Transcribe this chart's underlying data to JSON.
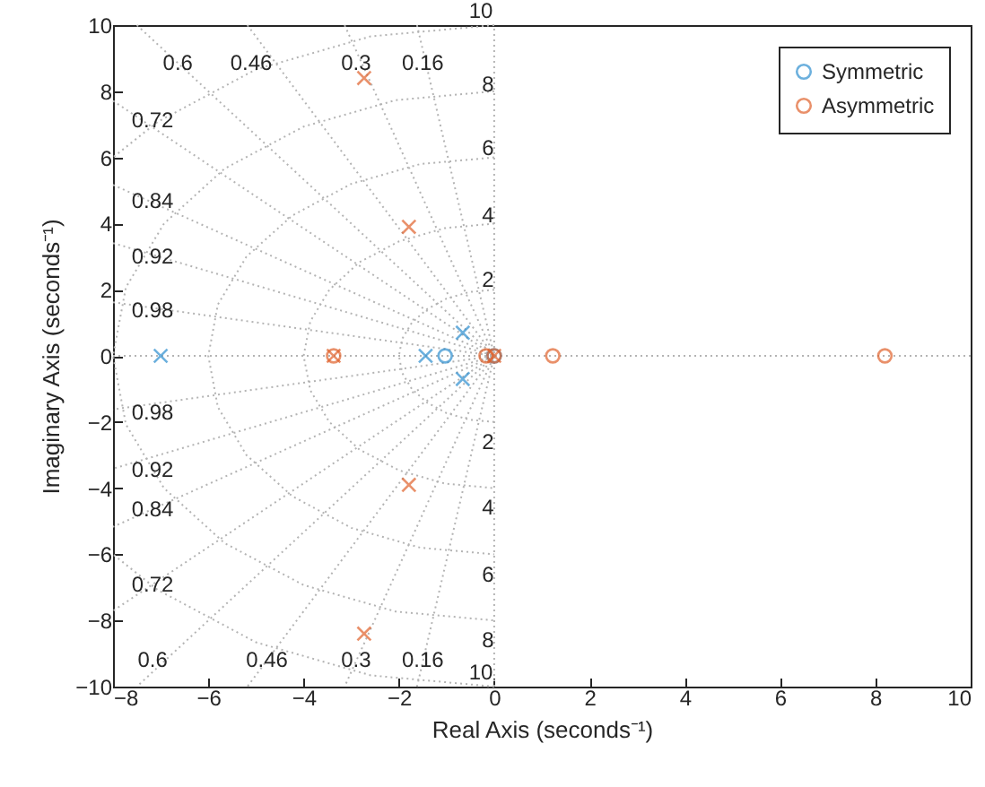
{
  "chart_data": {
    "type": "scatter",
    "xlabel": "Real Axis (seconds⁻¹)",
    "ylabel": "Imaginary Axis (seconds⁻¹)",
    "xlim": [
      -8,
      10
    ],
    "ylim": [
      -10,
      10
    ],
    "xticks": [
      -8,
      -6,
      -4,
      -2,
      0,
      2,
      4,
      6,
      8,
      10
    ],
    "yticks": [
      -10,
      -8,
      -6,
      -4,
      -2,
      0,
      2,
      4,
      6,
      8,
      10
    ],
    "legend": "top right",
    "series": [
      {
        "type": "line",
        "color": "#b4b4b4",
        "line_style": "dotted",
        "marker": "none",
        "x": [
          0,
          -0.52,
          -1,
          -1.41,
          -1.73,
          -1.93,
          -2,
          -1.93,
          -1.73,
          -1.41,
          -1,
          -0.52,
          0
        ],
        "values": [
          2,
          1.93,
          1.73,
          1.41,
          1,
          0.52,
          0,
          -0.52,
          -1,
          -1.41,
          -1.73,
          -1.93,
          -2
        ]
      },
      {
        "type": "line",
        "color": "#b4b4b4",
        "line_style": "dotted",
        "marker": "none",
        "x": [
          0,
          -1.04,
          -2,
          -2.83,
          -3.46,
          -3.86,
          -4,
          -3.86,
          -3.46,
          -2.83,
          -2,
          -1.04,
          0
        ],
        "values": [
          4,
          3.86,
          3.46,
          2.83,
          2,
          1.04,
          0,
          -1.04,
          -2,
          -2.83,
          -3.46,
          -3.86,
          -4
        ]
      },
      {
        "type": "line",
        "color": "#b4b4b4",
        "line_style": "dotted",
        "marker": "none",
        "x": [
          0,
          -1.55,
          -3,
          -4.24,
          -5.2,
          -5.8,
          -6,
          -5.8,
          -5.2,
          -4.24,
          -3,
          -1.55,
          0
        ],
        "values": [
          6,
          5.8,
          5.2,
          4.24,
          3,
          1.55,
          0,
          -1.55,
          -3,
          -4.24,
          -5.2,
          -5.8,
          -6
        ]
      },
      {
        "type": "line",
        "color": "#b4b4b4",
        "line_style": "dotted",
        "marker": "none",
        "x": [
          0,
          -2.07,
          -4,
          -5.66,
          -6.93,
          -7.73,
          -8,
          -7.73,
          -6.93,
          -5.66,
          -4,
          -2.07,
          0
        ],
        "values": [
          8,
          7.73,
          6.93,
          5.66,
          4,
          2.07,
          0,
          -2.07,
          -4,
          -5.66,
          -6.93,
          -7.73,
          -8
        ]
      },
      {
        "type": "line",
        "color": "#b4b4b4",
        "line_style": "dotted",
        "marker": "none",
        "x": [
          0,
          -2.59,
          -5,
          -7.07,
          -8
        ],
        "values": [
          10,
          9.66,
          8.66,
          7.07,
          6
        ]
      },
      {
        "type": "line",
        "color": "#b4b4b4",
        "line_style": "dotted",
        "marker": "none",
        "x": [
          0,
          -2.59,
          -5,
          -7.07,
          -8
        ],
        "values": [
          -10,
          -9.66,
          -8.66,
          -7.07,
          -6
        ]
      },
      {
        "type": "line",
        "color": "#b4b4b4",
        "line_style": "dotted",
        "marker": "none",
        "x": [
          -1.62,
          0,
          -1.62
        ],
        "values": [
          10,
          0,
          -10
        ]
      },
      {
        "type": "line",
        "color": "#b4b4b4",
        "line_style": "dotted",
        "marker": "none",
        "x": [
          -3.14,
          0,
          -3.14
        ],
        "values": [
          10,
          0,
          -10
        ]
      },
      {
        "type": "line",
        "color": "#b4b4b4",
        "line_style": "dotted",
        "marker": "none",
        "x": [
          -5.18,
          0,
          -5.18
        ],
        "values": [
          10,
          0,
          -10
        ]
      },
      {
        "type": "line",
        "color": "#b4b4b4",
        "line_style": "dotted",
        "marker": "none",
        "x": [
          -7.5,
          0,
          -7.5
        ],
        "values": [
          10,
          0,
          -10
        ]
      },
      {
        "type": "line",
        "color": "#b4b4b4",
        "line_style": "dotted",
        "marker": "none",
        "x": [
          -8,
          0,
          -8
        ],
        "values": [
          7.71,
          0,
          -7.71
        ]
      },
      {
        "type": "line",
        "color": "#b4b4b4",
        "line_style": "dotted",
        "marker": "none",
        "x": [
          -8,
          0,
          -8
        ],
        "values": [
          5.17,
          0,
          -5.17
        ]
      },
      {
        "type": "line",
        "color": "#b4b4b4",
        "line_style": "dotted",
        "marker": "none",
        "x": [
          -8,
          0,
          -8
        ],
        "values": [
          3.41,
          0,
          -3.41
        ]
      },
      {
        "type": "line",
        "color": "#b4b4b4",
        "line_style": "dotted",
        "marker": "none",
        "x": [
          -8,
          0,
          -8
        ],
        "values": [
          1.62,
          0,
          -1.62
        ]
      },
      {
        "type": "line",
        "color": "#b4b4b4",
        "line_style": "dotted",
        "marker": "none",
        "x": [
          -8,
          10
        ],
        "values": [
          0,
          0
        ]
      },
      {
        "type": "line",
        "color": "#b4b4b4",
        "line_style": "dotted",
        "marker": "none",
        "x": [
          0,
          0
        ],
        "values": [
          -10,
          10
        ]
      },
      {
        "name": "Symmetric",
        "color": "#2e8fd0",
        "marker": "circle",
        "x": [
          -1.03,
          0
        ],
        "values": [
          0,
          0
        ]
      },
      {
        "color": "#2e8fd0",
        "marker": "cross",
        "x": [
          -7,
          -1.44,
          -0.66,
          -0.66
        ],
        "values": [
          0,
          0,
          0.7,
          -0.7
        ]
      },
      {
        "name": "Asymmetric",
        "color": "#e0622c",
        "marker": "circle",
        "x": [
          -3.37,
          -0.17,
          0,
          1.23,
          8.2
        ],
        "values": [
          0,
          0,
          0,
          0,
          0
        ]
      },
      {
        "color": "#e0622c",
        "marker": "cross",
        "x": [
          -2.73,
          -2.73,
          -1.79,
          -1.79,
          -3.37,
          0
        ],
        "values": [
          8.4,
          -8.4,
          3.9,
          -3.9,
          0,
          0
        ]
      }
    ],
    "annotations": [
      {
        "text": "0.6",
        "x": -6.64,
        "y": 8.85
      },
      {
        "text": "0.46",
        "x": -5.1,
        "y": 8.85
      },
      {
        "text": "0.3",
        "x": -2.9,
        "y": 8.85
      },
      {
        "text": "0.16",
        "x": -1.5,
        "y": 8.85
      },
      {
        "text": "0.72",
        "x": -7.17,
        "y": 7.13
      },
      {
        "text": "0.84",
        "x": -7.17,
        "y": 4.7
      },
      {
        "text": "0.92",
        "x": -7.17,
        "y": 3.0
      },
      {
        "text": "0.98",
        "x": -7.17,
        "y": 1.38
      },
      {
        "text": "0.98",
        "x": -7.17,
        "y": -1.7
      },
      {
        "text": "0.92",
        "x": -7.17,
        "y": -3.44
      },
      {
        "text": "0.84",
        "x": -7.17,
        "y": -4.63
      },
      {
        "text": "0.72",
        "x": -7.17,
        "y": -6.91
      },
      {
        "text": "0.6",
        "x": -7.17,
        "y": -9.2
      },
      {
        "text": "0.46",
        "x": -4.77,
        "y": -9.2
      },
      {
        "text": "0.3",
        "x": -2.9,
        "y": -9.2
      },
      {
        "text": "0.16",
        "x": -1.5,
        "y": -9.2
      },
      {
        "text": "10",
        "x": -0.28,
        "y": 10
      },
      {
        "text": "8",
        "x": -0.13,
        "y": 8.2
      },
      {
        "text": "6",
        "x": -0.13,
        "y": 6.3
      },
      {
        "text": "4",
        "x": -0.13,
        "y": 4.25
      },
      {
        "text": "2",
        "x": -0.13,
        "y": 2.3
      },
      {
        "text": "2",
        "x": -0.13,
        "y": -2.6
      },
      {
        "text": "4",
        "x": -0.13,
        "y": -4.58
      },
      {
        "text": "6",
        "x": -0.13,
        "y": -6.6
      },
      {
        "text": "8",
        "x": -0.13,
        "y": -8.6
      },
      {
        "text": "10",
        "x": -0.28,
        "y": -10
      }
    ]
  }
}
